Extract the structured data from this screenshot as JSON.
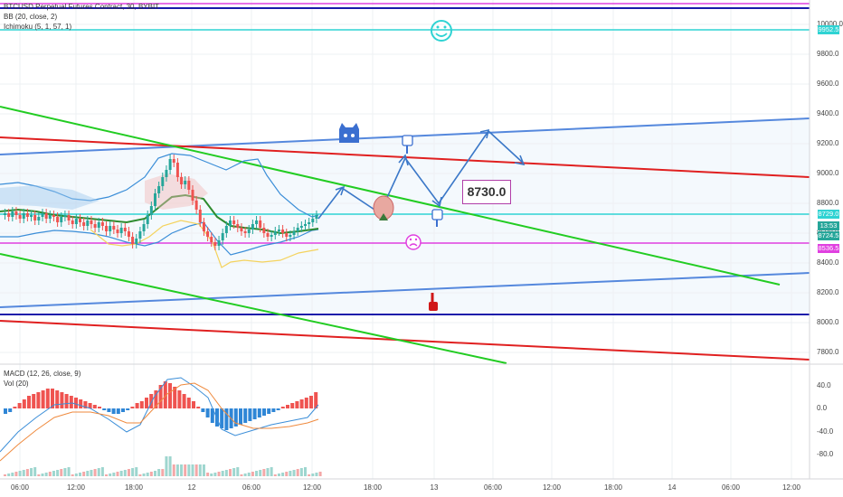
{
  "header": {
    "title": "BTCUSD Perpetual Futures Contract, 30, BYBIT",
    "bb": "BB (20, close, 2)",
    "ichimoku": "Ichimoku (5, 1, 57, 1)"
  },
  "indicators": {
    "macd": "MACD (12, 26, close, 9)",
    "vol": "Vol (20)"
  },
  "price_axis": [
    "10000.0",
    "9800.0",
    "9600.0",
    "9400.0",
    "9200.0",
    "9000.0",
    "8800.0",
    "8600.0",
    "8400.0",
    "8200.0",
    "8000.0",
    "7800.0"
  ],
  "macd_axis": [
    "40.0",
    "0.0",
    "-40.0",
    "-80.0"
  ],
  "time_axis": [
    "06:00",
    "12:00",
    "18:00",
    "12",
    "06:00",
    "12:00",
    "18:00",
    "13",
    "06:00",
    "12:00",
    "18:00",
    "14",
    "06:00",
    "12:00"
  ],
  "price_tags": [
    {
      "label": "9952.5",
      "color": "#2fd3d3"
    },
    {
      "label": "8729.0",
      "color": "#2fd3d3"
    },
    {
      "label": "13:53",
      "color": "#26a69a"
    },
    {
      "label": "8724.5",
      "color": "#26a69a"
    },
    {
      "label": "8536.5",
      "color": "#e040e0"
    }
  ],
  "callout": "8730.0",
  "icons": [
    "smiley-icon",
    "octocat-icon",
    "pointing-down-hand-icon",
    "pointing-down-hand-icon",
    "frown-icon",
    "red-hand-icon",
    "up-arrow-icon"
  ],
  "colors": {
    "up": "#26a69a",
    "down": "#ef5350",
    "cyan": "#2fd3d3",
    "magenta": "#e040e0",
    "green": "#22cc22",
    "red": "#e02020",
    "blue": "#5588dd",
    "navy": "#1a1aaa"
  }
}
